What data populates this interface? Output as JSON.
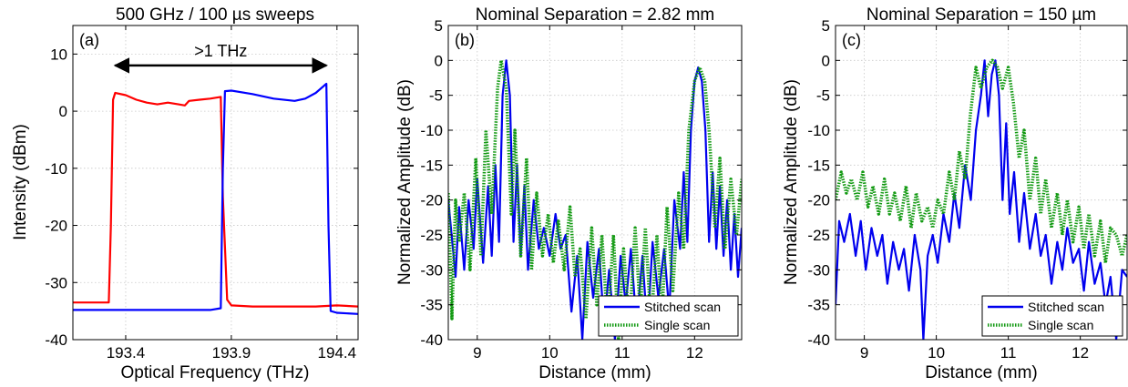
{
  "chart_data": [
    {
      "id": "a",
      "type": "line",
      "title": "500 GHz / 100 µs sweeps",
      "panel_label": "(a)",
      "xlabel": "Optical Frequency (THz)",
      "ylabel": "Intensity (dBm)",
      "xlim": [
        193.15,
        194.5
      ],
      "ylim": [
        -40,
        15
      ],
      "xticks": [
        193.4,
        193.9,
        194.4
      ],
      "xtick_labels": [
        "193.4",
        "193.9",
        "194.4"
      ],
      "yticks": [
        -40,
        -30,
        -20,
        -10,
        0,
        10
      ],
      "ytick_labels": [
        "-40",
        "-30",
        "-20",
        "-10",
        "0",
        "10"
      ],
      "grid": true,
      "annotation": {
        "text": ">1 THz",
        "x_start": 193.35,
        "x_end": 194.35,
        "y": 8
      },
      "series": [
        {
          "color": "#ff0000",
          "style": "solid",
          "x": [
            193.15,
            193.32,
            193.33,
            193.34,
            193.35,
            193.4,
            193.45,
            193.5,
            193.55,
            193.6,
            193.65,
            193.68,
            193.7,
            193.75,
            193.8,
            193.85,
            193.86,
            193.88,
            193.9,
            194.0,
            194.1,
            194.2,
            194.3,
            194.4,
            194.5
          ],
          "y": [
            -33.5,
            -33.5,
            -20,
            2,
            3.2,
            2.8,
            2.0,
            1.5,
            1.2,
            1.5,
            1.2,
            1.0,
            1.8,
            2.0,
            2.2,
            2.5,
            -15,
            -33,
            -34,
            -34.2,
            -34.2,
            -34.2,
            -34.2,
            -34.0,
            -34.2
          ]
        },
        {
          "color": "#0000ff",
          "style": "solid",
          "x": [
            193.15,
            193.4,
            193.6,
            193.8,
            193.85,
            193.86,
            193.87,
            193.9,
            194.0,
            194.1,
            194.2,
            194.25,
            194.3,
            194.34,
            194.35,
            194.36,
            194.37,
            194.4,
            194.5
          ],
          "y": [
            -34.8,
            -34.8,
            -34.8,
            -34.8,
            -34.5,
            -10,
            3.5,
            3.6,
            3.0,
            2.2,
            1.8,
            2.2,
            3.2,
            4.5,
            4.8,
            -20,
            -35,
            -35.3,
            -35.5
          ]
        }
      ]
    },
    {
      "id": "b",
      "type": "line",
      "title": "Nominal Separation = 2.82 mm",
      "panel_label": "(b)",
      "xlabel": "Distance (mm)",
      "ylabel": "Normalized Amplitude (dB)",
      "xlim": [
        8.6,
        12.65
      ],
      "ylim": [
        -40,
        5
      ],
      "xticks": [
        9,
        10,
        11,
        12
      ],
      "xtick_labels": [
        "9",
        "10",
        "11",
        "12"
      ],
      "yticks": [
        -40,
        -35,
        -30,
        -25,
        -20,
        -15,
        -10,
        -5,
        0,
        5
      ],
      "ytick_labels": [
        "-40",
        "-35",
        "-30",
        "-25",
        "-20",
        "-15",
        "-10",
        "-5",
        "0",
        "5"
      ],
      "grid": true,
      "legend": {
        "position": "bottom-right",
        "entries": [
          "Stitched scan",
          "Single scan"
        ]
      },
      "series": [
        {
          "name": "Stitched scan",
          "color": "#0000ee",
          "style": "solid",
          "x": [
            8.6,
            8.7,
            8.75,
            8.82,
            8.88,
            8.95,
            9.0,
            9.08,
            9.15,
            9.2,
            9.25,
            9.3,
            9.35,
            9.4,
            9.45,
            9.5,
            9.55,
            9.6,
            9.65,
            9.7,
            9.78,
            9.85,
            9.92,
            10.0,
            10.08,
            10.15,
            10.22,
            10.3,
            10.38,
            10.45,
            10.52,
            10.6,
            10.68,
            10.75,
            10.82,
            10.9,
            10.98,
            11.05,
            11.12,
            11.2,
            11.28,
            11.35,
            11.42,
            11.5,
            11.58,
            11.65,
            11.72,
            11.8,
            11.85,
            11.9,
            11.95,
            12.0,
            12.05,
            12.1,
            12.15,
            12.2,
            12.25,
            12.3,
            12.35,
            12.4,
            12.45,
            12.5,
            12.55,
            12.6,
            12.65
          ],
          "y": [
            -20,
            -31,
            -21,
            -30,
            -20,
            -27,
            -17,
            -29,
            -18,
            -28,
            -15,
            -26,
            -5,
            0,
            -5,
            -26,
            -15,
            -28,
            -18,
            -30,
            -20,
            -27,
            -24,
            -28,
            -22,
            -27,
            -25,
            -36,
            -28,
            -40,
            -26,
            -34,
            -27,
            -38,
            -30,
            -40,
            -28,
            -35,
            -27,
            -38,
            -28,
            -39,
            -26,
            -34,
            -27,
            -36,
            -20,
            -27,
            -16,
            -26,
            -10,
            -3,
            -1,
            -3,
            -10,
            -26,
            -16,
            -27,
            -18,
            -28,
            -20,
            -30,
            -22,
            -31,
            -24
          ]
        },
        {
          "name": "Single scan",
          "color": "#119911",
          "style": "dotted",
          "x": [
            8.6,
            8.65,
            8.7,
            8.75,
            8.82,
            8.9,
            8.98,
            9.05,
            9.12,
            9.2,
            9.28,
            9.33,
            9.4,
            9.47,
            9.52,
            9.6,
            9.68,
            9.75,
            9.82,
            9.9,
            9.98,
            10.05,
            10.12,
            10.2,
            10.28,
            10.35,
            10.42,
            10.5,
            10.58,
            10.65,
            10.72,
            10.8,
            10.88,
            10.95,
            11.02,
            11.1,
            11.18,
            11.25,
            11.32,
            11.4,
            11.48,
            11.55,
            11.62,
            11.7,
            11.78,
            11.85,
            11.92,
            12.0,
            12.07,
            12.14,
            12.2,
            12.28,
            12.35,
            12.42,
            12.5,
            12.58,
            12.65
          ],
          "y": [
            -19,
            -37,
            -20,
            -26,
            -19,
            -30,
            -14,
            -28,
            -10,
            -22,
            -4,
            0,
            -4,
            -22,
            -10,
            -28,
            -14,
            -30,
            -19,
            -28,
            -22,
            -29,
            -23,
            -30,
            -21,
            -31,
            -27,
            -37,
            -24,
            -35,
            -25,
            -38,
            -25,
            -40,
            -27,
            -38,
            -24,
            -36,
            -24,
            -38,
            -25,
            -37,
            -21,
            -33,
            -19,
            -27,
            -10,
            -3,
            -1,
            -3,
            -10,
            -24,
            -14,
            -27,
            -17,
            -25,
            -17
          ]
        }
      ]
    },
    {
      "id": "c",
      "type": "line",
      "title": "Nominal Separation = 150 µm",
      "panel_label": "(c)",
      "xlabel": "Distance (mm)",
      "ylabel": "Normalized Amplitude (dB)",
      "xlim": [
        8.6,
        12.65
      ],
      "ylim": [
        -40,
        5
      ],
      "xticks": [
        9,
        10,
        11,
        12
      ],
      "xtick_labels": [
        "9",
        "10",
        "11",
        "12"
      ],
      "yticks": [
        -40,
        -35,
        -30,
        -25,
        -20,
        -15,
        -10,
        -5,
        0,
        5
      ],
      "ytick_labels": [
        "-40",
        "-35",
        "-30",
        "-25",
        "-20",
        "-15",
        "-10",
        "-5",
        "0",
        "5"
      ],
      "grid": true,
      "legend": {
        "position": "bottom-right",
        "entries": [
          "Stitched scan",
          "Single scan"
        ]
      },
      "series": [
        {
          "name": "Stitched scan",
          "color": "#0000ee",
          "style": "solid",
          "x": [
            8.6,
            8.65,
            8.72,
            8.8,
            8.88,
            8.95,
            9.02,
            9.1,
            9.18,
            9.25,
            9.32,
            9.4,
            9.48,
            9.55,
            9.62,
            9.7,
            9.78,
            9.82,
            9.88,
            9.95,
            10.02,
            10.1,
            10.18,
            10.25,
            10.32,
            10.4,
            10.48,
            10.55,
            10.62,
            10.67,
            10.72,
            10.77,
            10.82,
            10.87,
            10.92,
            10.97,
            11.02,
            11.08,
            11.15,
            11.22,
            11.3,
            11.38,
            11.45,
            11.52,
            11.6,
            11.68,
            11.75,
            11.82,
            11.9,
            11.98,
            12.05,
            12.12,
            12.2,
            12.28,
            12.35,
            12.42,
            12.5,
            12.58,
            12.65
          ],
          "y": [
            -35,
            -23,
            -26,
            -22,
            -28,
            -23,
            -30,
            -24,
            -28,
            -25,
            -32,
            -26,
            -30,
            -27,
            -33,
            -25,
            -30,
            -40,
            -28,
            -25,
            -29,
            -22,
            -26,
            -19,
            -24,
            -15,
            -20,
            -10,
            -5,
            0,
            -8,
            -2,
            0,
            -5,
            -20,
            -9,
            -22,
            -16,
            -26,
            -19,
            -27,
            -22,
            -28,
            -25,
            -32,
            -26,
            -30,
            -24,
            -29,
            -27,
            -33,
            -26,
            -32,
            -29,
            -35,
            -31,
            -40,
            -30,
            -31
          ]
        },
        {
          "name": "Single scan",
          "color": "#119911",
          "style": "dotted",
          "x": [
            8.6,
            8.68,
            8.75,
            8.82,
            8.9,
            8.98,
            9.05,
            9.12,
            9.2,
            9.28,
            9.35,
            9.42,
            9.5,
            9.58,
            9.65,
            9.72,
            9.8,
            9.88,
            9.95,
            10.02,
            10.1,
            10.18,
            10.25,
            10.32,
            10.4,
            10.47,
            10.55,
            10.62,
            10.7,
            10.78,
            10.85,
            10.92,
            11.0,
            11.07,
            11.15,
            11.22,
            11.3,
            11.38,
            11.45,
            11.52,
            11.6,
            11.68,
            11.75,
            11.82,
            11.9,
            11.98,
            12.05,
            12.12,
            12.2,
            12.28,
            12.35,
            12.42,
            12.5,
            12.58,
            12.65
          ],
          "y": [
            -20,
            -16,
            -19,
            -17,
            -20,
            -16,
            -21,
            -18,
            -22,
            -17,
            -22,
            -19,
            -23,
            -18,
            -24,
            -19,
            -23,
            -21,
            -24,
            -20,
            -22,
            -16,
            -20,
            -13,
            -17,
            -8,
            -1,
            -4,
            -1,
            0,
            -1,
            -4,
            -1,
            -6,
            -14,
            -10,
            -20,
            -14,
            -22,
            -17,
            -24,
            -19,
            -25,
            -20,
            -26,
            -21,
            -27,
            -22,
            -28,
            -23,
            -29,
            -24,
            -25,
            -28,
            -25
          ]
        }
      ]
    }
  ]
}
